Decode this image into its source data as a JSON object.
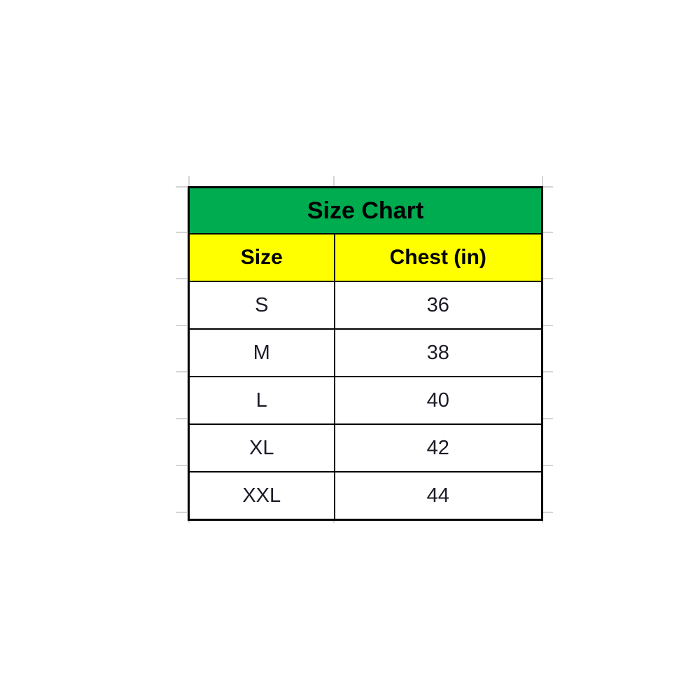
{
  "page": {
    "background_color": "#FFFFFF"
  },
  "chart_data": {
    "type": "table",
    "title": "Size Chart",
    "columns": [
      "Size",
      "Chest (in)"
    ],
    "rows": [
      [
        "S",
        "36"
      ],
      [
        "M",
        "38"
      ],
      [
        "L",
        "40"
      ],
      [
        "XL",
        "42"
      ],
      [
        "XXL",
        "44"
      ]
    ]
  },
  "colors": {
    "title_row_bg": "#00AC50",
    "header_row_bg": "#FFFF00",
    "table_border": "#000000",
    "title_text": "#000000",
    "header_text": "#000000",
    "data_text": "#1C1C28",
    "gridline_stub": "#D5D5D5"
  }
}
